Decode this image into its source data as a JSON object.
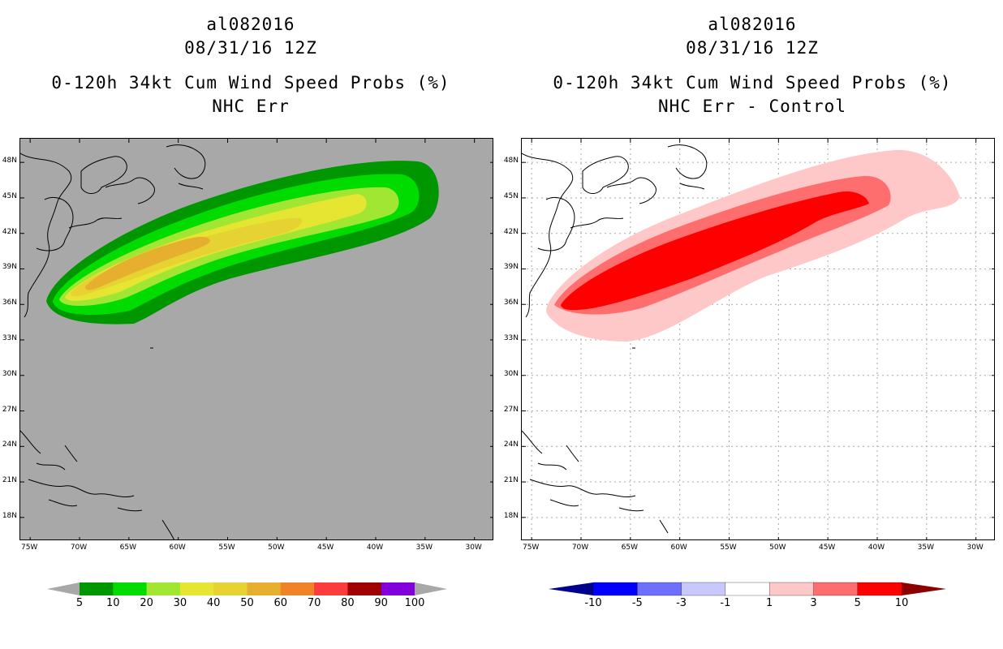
{
  "left_panel": {
    "title_lines": [
      "al082016",
      "08/31/16 12Z",
      "0-120h 34kt Cum Wind Speed Probs (%)",
      "NHC Err"
    ],
    "colorbar": {
      "colors": [
        "#a8a8a8",
        "#009600",
        "#00dc00",
        "#a0e632",
        "#e6e632",
        "#e6d232",
        "#e6af2d",
        "#f08228",
        "#fa3c3c",
        "#a00000",
        "#8200dc",
        "#a8a8a8"
      ],
      "labels": [
        "5",
        "10",
        "20",
        "30",
        "40",
        "50",
        "60",
        "70",
        "80",
        "90",
        "100"
      ]
    }
  },
  "right_panel": {
    "title_lines": [
      "al082016",
      "08/31/16 12Z",
      "0-120h 34kt Cum Wind Speed Probs (%)",
      "NHC Err - Control"
    ],
    "colorbar": {
      "colors": [
        "#00008c",
        "#0000ff",
        "#6e6eff",
        "#c8c8ff",
        "#ffffff",
        "#ffc8c8",
        "#ff6e6e",
        "#ff0000",
        "#8c0000"
      ],
      "labels": [
        "-10",
        "-5",
        "-3",
        "-1",
        "1",
        "3",
        "5",
        "10"
      ]
    }
  },
  "axes": {
    "lat_labels": [
      "48N",
      "45N",
      "42N",
      "39N",
      "36N",
      "33N",
      "30N",
      "27N",
      "24N",
      "21N",
      "18N"
    ],
    "lat_values": [
      48,
      45,
      42,
      39,
      36,
      33,
      30,
      27,
      24,
      21,
      18
    ],
    "lon_labels": [
      "75W",
      "70W",
      "65W",
      "60W",
      "55W",
      "50W",
      "45W",
      "40W",
      "35W",
      "30W"
    ],
    "lon_values": [
      -75,
      -70,
      -65,
      -60,
      -55,
      -50,
      -45,
      -40,
      -35,
      -30
    ],
    "lon_range": [
      -76,
      -28
    ],
    "lat_range": [
      16,
      50
    ]
  }
}
